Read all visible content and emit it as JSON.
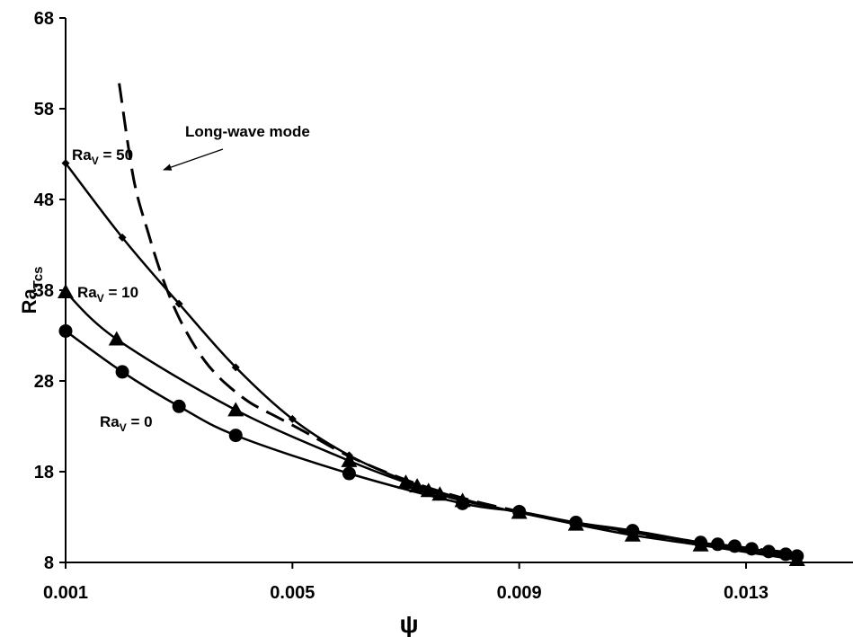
{
  "chart_data": {
    "type": "line",
    "title": "",
    "xlabel": "ψ",
    "ylabel": {
      "main": "Ra",
      "sub": "Tcs"
    },
    "xlim": [
      0.001,
      0.0148
    ],
    "ylim": [
      8,
      68
    ],
    "xticks": [
      0.001,
      0.005,
      0.009,
      0.013
    ],
    "xtick_labels": [
      "0.001",
      "0.005",
      "0.009",
      "0.013"
    ],
    "yticks": [
      8,
      18,
      28,
      38,
      48,
      58,
      68
    ],
    "ytick_labels": [
      "8",
      "18",
      "28",
      "38",
      "48",
      "58",
      "68"
    ],
    "grid": false,
    "series": [
      {
        "key": "rav0",
        "marker": "circle",
        "points": [
          [
            0.001,
            33.5
          ],
          [
            0.002,
            29.0
          ],
          [
            0.003,
            25.2
          ],
          [
            0.004,
            22.0
          ],
          [
            0.006,
            17.8
          ],
          [
            0.008,
            14.5
          ],
          [
            0.009,
            13.6
          ],
          [
            0.01,
            12.4
          ],
          [
            0.011,
            11.5
          ],
          [
            0.0122,
            10.2
          ],
          [
            0.0125,
            10.0
          ],
          [
            0.0128,
            9.8
          ],
          [
            0.0131,
            9.5
          ],
          [
            0.0134,
            9.2
          ],
          [
            0.0137,
            8.9
          ],
          [
            0.0139,
            8.7
          ]
        ]
      },
      {
        "key": "rav10",
        "marker": "triangle",
        "points": [
          [
            0.001,
            37.8
          ],
          [
            0.0019,
            32.6
          ],
          [
            0.004,
            24.8
          ],
          [
            0.006,
            19.2
          ],
          [
            0.007,
            16.8
          ],
          [
            0.0072,
            16.4
          ],
          [
            0.0074,
            15.9
          ],
          [
            0.0076,
            15.5
          ],
          [
            0.008,
            14.8
          ],
          [
            0.009,
            13.5
          ],
          [
            0.01,
            12.2
          ],
          [
            0.011,
            11.0
          ],
          [
            0.0122,
            9.9
          ],
          [
            0.0139,
            8.3
          ]
        ]
      },
      {
        "key": "rav50",
        "marker": "diamond",
        "points": [
          [
            0.001,
            52.0
          ],
          [
            0.002,
            43.8
          ],
          [
            0.003,
            36.5
          ],
          [
            0.004,
            29.5
          ],
          [
            0.005,
            23.8
          ],
          [
            0.006,
            19.8
          ],
          [
            0.007,
            17.0
          ],
          [
            0.008,
            15.0
          ],
          [
            0.009,
            13.5
          ],
          [
            0.01,
            12.4
          ],
          [
            0.011,
            11.3
          ],
          [
            0.0122,
            10.1
          ],
          [
            0.0139,
            8.5
          ]
        ]
      },
      {
        "key": "long_wave",
        "marker": "none",
        "dashed": true,
        "points": [
          [
            0.001945,
            60.8
          ],
          [
            0.002199,
            50.3
          ],
          [
            0.002453,
            44.4
          ],
          [
            0.002707,
            39.4
          ],
          [
            0.00296,
            35.5
          ],
          [
            0.003214,
            32.5
          ],
          [
            0.003468,
            30.1
          ],
          [
            0.003722,
            28.3
          ],
          [
            0.003976,
            26.9
          ],
          [
            0.00423,
            25.7
          ],
          [
            0.004484,
            24.8
          ],
          [
            0.004737,
            24.0
          ],
          [
            0.005245,
            22.3
          ],
          [
            0.006,
            19.7
          ],
          [
            0.007,
            17.1
          ],
          [
            0.008,
            15.1
          ],
          [
            0.009,
            13.6
          ],
          [
            0.01,
            12.3
          ],
          [
            0.011,
            11.2
          ],
          [
            0.012,
            10.3
          ],
          [
            0.013,
            9.6
          ],
          [
            0.0139,
            9.0
          ]
        ]
      }
    ],
    "annotations": {
      "long_wave_label": "Long-wave mode",
      "rav50": {
        "main": "Ra",
        "sub": "V",
        "suffix": " = 50"
      },
      "rav10": {
        "main": "Ra",
        "sub": "V",
        "suffix": " = 10"
      },
      "rav0": {
        "main": "Ra",
        "sub": "V",
        "suffix": " = 0"
      }
    }
  }
}
